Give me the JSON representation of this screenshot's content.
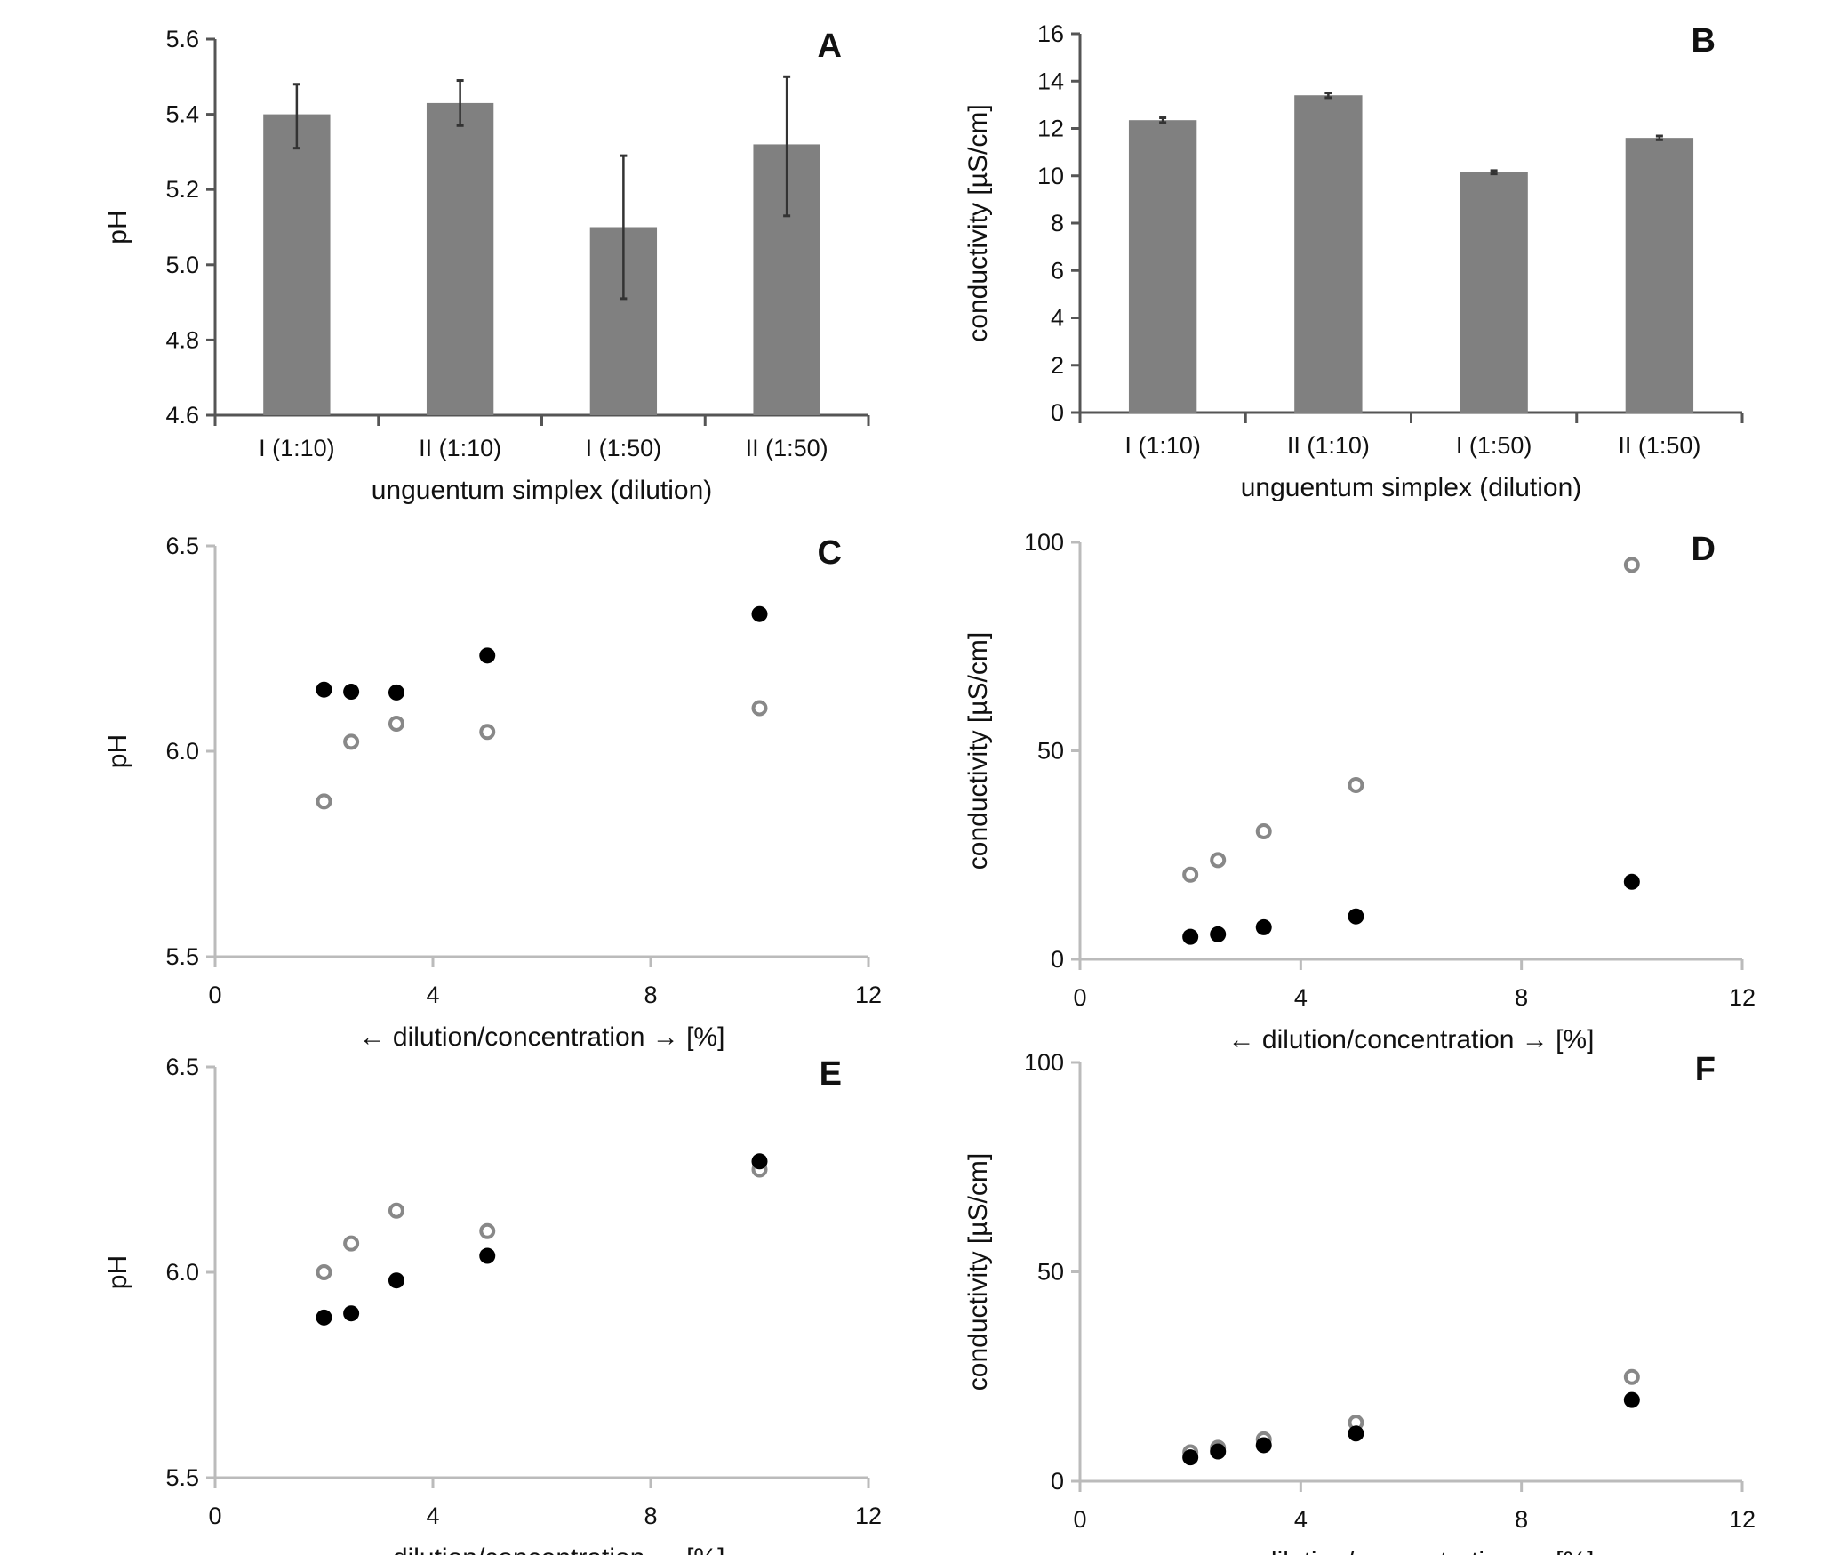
{
  "chart_data": [
    {
      "panel": "A",
      "type": "bar",
      "categories": [
        "I (1:10)",
        "II (1:10)",
        "I (1:50)",
        "II (1:50)"
      ],
      "values": [
        5.4,
        5.43,
        5.1,
        5.32
      ],
      "error_low": [
        5.31,
        5.37,
        4.91,
        5.13
      ],
      "error_high": [
        5.48,
        5.49,
        5.29,
        5.5
      ],
      "xlabel": "unguentum simplex (dilution)",
      "ylabel": "pH",
      "ylim": [
        4.6,
        5.6
      ],
      "yticks": [
        "4.6",
        "4.8",
        "5.0",
        "5.2",
        "5.4",
        "5.6"
      ],
      "bar_color": "#808080",
      "axis_color": "#555555"
    },
    {
      "panel": "B",
      "type": "bar",
      "categories": [
        "I (1:10)",
        "II (1:10)",
        "I (1:50)",
        "II (1:50)"
      ],
      "values": [
        12.35,
        13.4,
        10.15,
        11.6
      ],
      "error_low": [
        12.25,
        13.3,
        10.08,
        11.52
      ],
      "error_high": [
        12.45,
        13.5,
        10.22,
        11.68
      ],
      "xlabel": "unguentum simplex (dilution)",
      "ylabel": "conductivity [µS/cm]",
      "ylim": [
        0,
        16
      ],
      "yticks": [
        "0",
        "2",
        "4",
        "6",
        "8",
        "10",
        "12",
        "14",
        "16"
      ],
      "bar_color": "#808080",
      "axis_color": "#555555"
    },
    {
      "panel": "C",
      "type": "scatter",
      "xlabel": "← dilution/concentration → [%]",
      "ylabel": "pH",
      "xlim": [
        0,
        12
      ],
      "ylim": [
        5.5,
        6.5
      ],
      "xticks": [
        "0",
        "4",
        "8",
        "12"
      ],
      "yticks": [
        "5.5",
        "6.0",
        "6.5"
      ],
      "axis_color": "#bbbbbb",
      "series": [
        {
          "marker": "filled",
          "color": "#000000",
          "x": [
            2,
            2.5,
            3.33,
            5,
            10
          ],
          "y": [
            6.15,
            6.145,
            6.143,
            6.233,
            6.334
          ]
        },
        {
          "marker": "open",
          "color": "#888888",
          "x": [
            2,
            2.5,
            3.33,
            5,
            10
          ],
          "y": [
            5.878,
            6.023,
            6.067,
            6.047,
            6.105
          ]
        }
      ]
    },
    {
      "panel": "D",
      "type": "scatter",
      "xlabel": "← dilution/concentration → [%]",
      "ylabel": "conductivity [µS/cm]",
      "xlim": [
        0,
        12
      ],
      "ylim": [
        0,
        100
      ],
      "xticks": [
        "0",
        "4",
        "8",
        "12"
      ],
      "yticks": [
        "0",
        "50",
        "100"
      ],
      "axis_color": "#bbbbbb",
      "series": [
        {
          "marker": "filled",
          "color": "#000000",
          "x": [
            2,
            2.5,
            3.33,
            5,
            10
          ],
          "y": [
            5.4,
            6.0,
            7.7,
            10.3,
            18.6
          ]
        },
        {
          "marker": "open",
          "color": "#888888",
          "x": [
            2,
            2.5,
            3.33,
            5,
            10
          ],
          "y": [
            20.3,
            23.8,
            30.7,
            41.8,
            94.6
          ]
        }
      ]
    },
    {
      "panel": "E",
      "type": "scatter",
      "xlabel": "← dilution/concentration → [%]",
      "ylabel": "pH",
      "xlim": [
        0,
        12
      ],
      "ylim": [
        5.5,
        6.5
      ],
      "xticks": [
        "0",
        "4",
        "8",
        "12"
      ],
      "yticks": [
        "5.5",
        "6.0",
        "6.5"
      ],
      "axis_color": "#bbbbbb",
      "series": [
        {
          "marker": "open",
          "color": "#888888",
          "x": [
            2,
            2.5,
            3.33,
            5,
            10
          ],
          "y": [
            6.0,
            6.07,
            6.15,
            6.1,
            6.25
          ]
        },
        {
          "marker": "filled",
          "color": "#000000",
          "x": [
            2,
            2.5,
            3.33,
            5,
            10
          ],
          "y": [
            5.89,
            5.9,
            5.98,
            6.04,
            6.27
          ]
        }
      ]
    },
    {
      "panel": "F",
      "type": "scatter",
      "xlabel": "← dilution/concentration → [%]",
      "ylabel": "conductivity [µS/cm]",
      "xlim": [
        0,
        12
      ],
      "ylim": [
        0,
        100
      ],
      "xticks": [
        "0",
        "4",
        "8",
        "12"
      ],
      "yticks": [
        "0",
        "50",
        "100"
      ],
      "axis_color": "#bbbbbb",
      "series": [
        {
          "marker": "open",
          "color": "#888888",
          "x": [
            2,
            2.5,
            3.33,
            5,
            10
          ],
          "y": [
            6.9,
            8.0,
            10.0,
            14.0,
            24.9
          ]
        },
        {
          "marker": "filled",
          "color": "#000000",
          "x": [
            2,
            2.5,
            3.33,
            5,
            10
          ],
          "y": [
            5.7,
            7.1,
            8.6,
            11.4,
            19.4
          ]
        }
      ]
    }
  ]
}
